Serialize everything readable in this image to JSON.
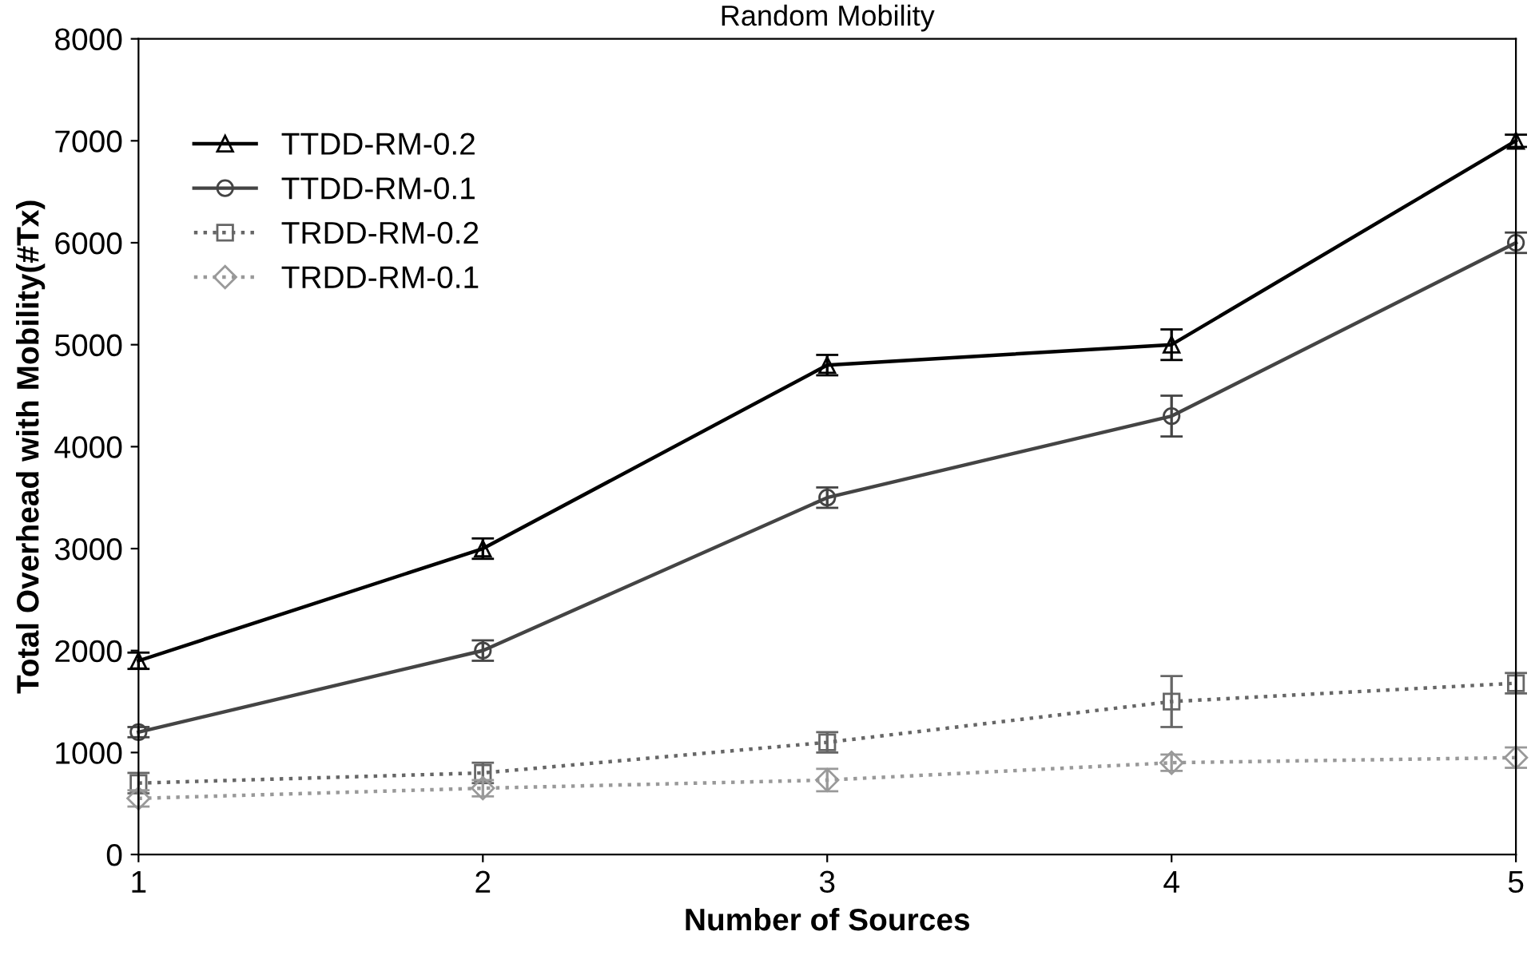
{
  "chart_data": {
    "type": "line",
    "title": "Random Mobility",
    "xlabel": "Number of Sources",
    "ylabel": "Total Overhead with Mobility(#Tx)",
    "x": [
      1,
      2,
      3,
      4,
      5
    ],
    "xlim": [
      1,
      5
    ],
    "xticks": [
      1,
      2,
      3,
      4,
      5
    ],
    "ylim": [
      0,
      8000
    ],
    "yticks": [
      0,
      1000,
      2000,
      3000,
      4000,
      5000,
      6000,
      7000,
      8000
    ],
    "grid": false,
    "legend": "top left",
    "series": [
      {
        "name": "TTDD-RM-0.2",
        "color": "#000000",
        "marker": "triangle",
        "line_style": "solid",
        "values": [
          1900,
          3000,
          4800,
          5000,
          7000
        ],
        "errors": [
          80,
          100,
          100,
          150,
          60
        ]
      },
      {
        "name": "TTDD-RM-0.1",
        "color": "#444444",
        "marker": "circle",
        "line_style": "solid",
        "values": [
          1200,
          2000,
          3500,
          4300,
          6000
        ],
        "errors": [
          50,
          100,
          100,
          200,
          100
        ]
      },
      {
        "name": "TRDD-RM-0.2",
        "color": "#666666",
        "marker": "square",
        "line_style": "dotted",
        "values": [
          700,
          800,
          1100,
          1500,
          1680
        ],
        "errors": [
          100,
          100,
          100,
          250,
          100
        ]
      },
      {
        "name": "TRDD-RM-0.1",
        "color": "#999999",
        "marker": "diamond",
        "line_style": "dotted",
        "values": [
          550,
          650,
          730,
          900,
          950
        ],
        "errors": [
          80,
          80,
          110,
          80,
          100
        ]
      }
    ]
  }
}
